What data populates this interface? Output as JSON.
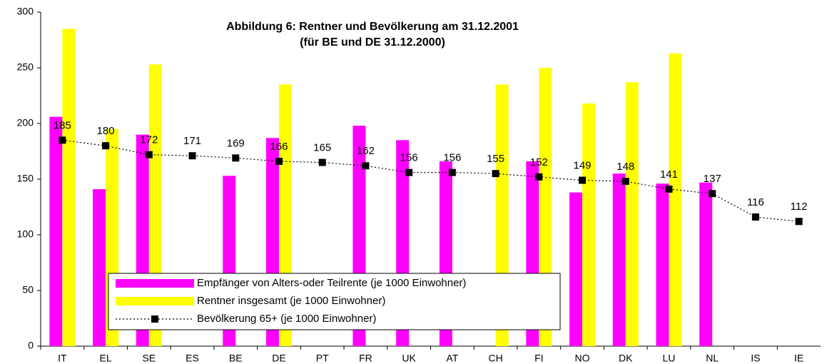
{
  "chart_data": {
    "type": "bar",
    "title": "Abbildung 6: Rentner und Bevölkerung am 31.12.2001",
    "subtitle": "(für BE und DE 31.12.2000)",
    "categories": [
      "IT",
      "EL",
      "SE",
      "ES",
      "BE",
      "DE",
      "PT",
      "FR",
      "UK",
      "AT",
      "CH",
      "FI",
      "NO",
      "DK",
      "LU",
      "NL",
      "IS",
      "IE"
    ],
    "series": [
      {
        "name": "Empfänger von Alters-oder Teilrente (je 1000 Einwohner)",
        "type": "bar",
        "color": "#ff00ff",
        "values": [
          206,
          141,
          190,
          null,
          153,
          187,
          null,
          198,
          185,
          166,
          null,
          166,
          138,
          155,
          146,
          147,
          null,
          null
        ]
      },
      {
        "name": "Rentner insgesamt (je 1000 Einwohner)",
        "type": "bar",
        "color": "#ffff00",
        "values": [
          285,
          195,
          253,
          null,
          null,
          235,
          null,
          null,
          null,
          null,
          235,
          250,
          218,
          237,
          263,
          null,
          null,
          null
        ]
      },
      {
        "name": "Bevölkerung 65+ (je 1000 Einwohner)",
        "type": "line",
        "color": "#000000",
        "values": [
          185,
          180,
          172,
          171,
          169,
          166,
          165,
          162,
          156,
          156,
          155,
          152,
          149,
          148,
          141,
          137,
          116,
          112
        ]
      }
    ],
    "ylim": [
      0,
      300
    ],
    "yticks": [
      0,
      50,
      100,
      150,
      200,
      250,
      300
    ],
    "grid": false
  }
}
